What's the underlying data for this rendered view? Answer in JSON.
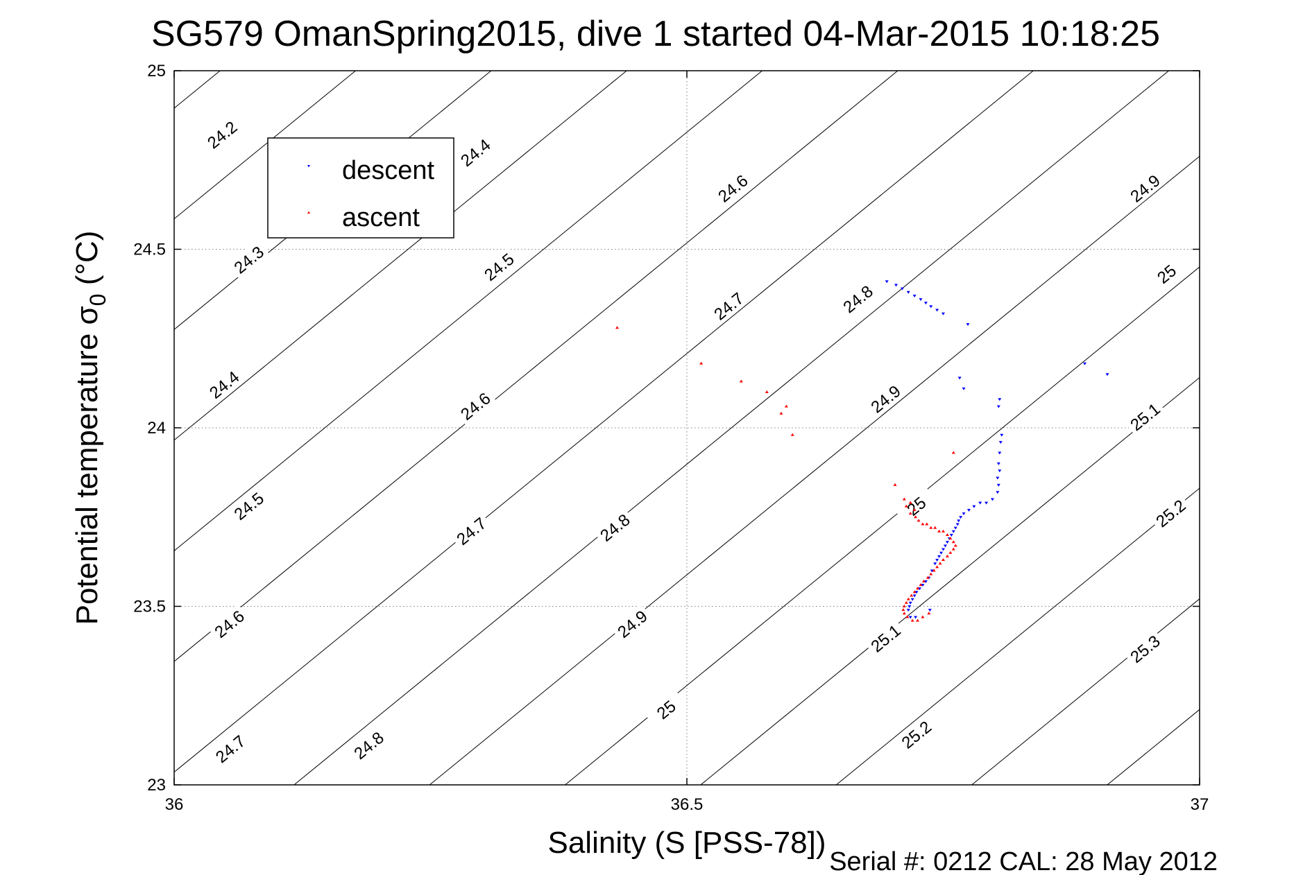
{
  "chart_data": {
    "type": "scatter",
    "title": "SG579 OmanSpring2015, dive 1 started 04-Mar-2015 10:18:25",
    "xlabel": "Salinity (S [PSS-78])",
    "ylabel_main": "Potential temperature σ",
    "ylabel_sub": "0",
    "ylabel_tail": " (°C)",
    "xlim": [
      36,
      37
    ],
    "ylim": [
      23,
      25
    ],
    "xticks": [
      36,
      36.5,
      37
    ],
    "xtick_labels": [
      "36",
      "36.5",
      "37"
    ],
    "yticks": [
      23,
      23.5,
      24,
      24.5,
      25
    ],
    "ytick_labels": [
      "23",
      "23.5",
      "24",
      "24.5",
      "25"
    ],
    "grid": "dotted",
    "legend": {
      "placement": "top-left",
      "entries": [
        {
          "name": "descent",
          "color": "#0000ff",
          "marker": "triangle-down"
        },
        {
          "name": "ascent",
          "color": "#ff0000",
          "marker": "triangle-up"
        }
      ]
    },
    "contours": {
      "note": "potential density sigma-0 isopycnals",
      "levels": [
        24.2,
        24.3,
        24.4,
        24.5,
        24.6,
        24.7,
        24.8,
        24.9,
        25,
        25.1,
        25.2,
        25.3
      ],
      "labels": [
        {
          "text": "24.2",
          "s": 36.047,
          "t": 24.82
        },
        {
          "text": "24.3",
          "s": 36.073,
          "t": 24.47
        },
        {
          "text": "24.4",
          "s": 36.049,
          "t": 24.12
        },
        {
          "text": "24.5",
          "s": 36.073,
          "t": 23.78
        },
        {
          "text": "24.6",
          "s": 36.054,
          "t": 23.45
        },
        {
          "text": "24.7",
          "s": 36.055,
          "t": 23.1
        },
        {
          "text": "24.4",
          "s": 36.294,
          "t": 24.77
        },
        {
          "text": "24.5",
          "s": 36.317,
          "t": 24.45
        },
        {
          "text": "24.6",
          "s": 36.294,
          "t": 24.06
        },
        {
          "text": "24.7",
          "s": 36.29,
          "t": 23.71
        },
        {
          "text": "24.8",
          "s": 36.19,
          "t": 23.11
        },
        {
          "text": "24.6",
          "s": 36.545,
          "t": 24.67
        },
        {
          "text": "24.7",
          "s": 36.541,
          "t": 24.34
        },
        {
          "text": "24.8",
          "s": 36.43,
          "t": 23.72
        },
        {
          "text": "24.9",
          "s": 36.447,
          "t": 23.45
        },
        {
          "text": "25",
          "s": 36.48,
          "t": 23.21
        },
        {
          "text": "24.8",
          "s": 36.667,
          "t": 24.36
        },
        {
          "text": "24.9",
          "s": 36.694,
          "t": 24.08
        },
        {
          "text": "25",
          "s": 36.724,
          "t": 23.78
        },
        {
          "text": "25.1",
          "s": 36.694,
          "t": 23.41
        },
        {
          "text": "25.2",
          "s": 36.724,
          "t": 23.14
        },
        {
          "text": "24.9",
          "s": 36.947,
          "t": 24.67
        },
        {
          "text": "25",
          "s": 36.968,
          "t": 24.43
        },
        {
          "text": "25.1",
          "s": 36.947,
          "t": 24.03
        },
        {
          "text": "25.2",
          "s": 36.972,
          "t": 23.76
        },
        {
          "text": "25.3",
          "s": 36.947,
          "t": 23.38
        }
      ]
    },
    "series": [
      {
        "name": "descent",
        "color": "#0000ff",
        "marker": "triangle-down",
        "points": [
          [
            36.695,
            24.41
          ],
          [
            36.704,
            24.4
          ],
          [
            36.71,
            24.39
          ],
          [
            36.716,
            24.38
          ],
          [
            36.722,
            24.37
          ],
          [
            36.728,
            24.36
          ],
          [
            36.733,
            24.35
          ],
          [
            36.738,
            24.34
          ],
          [
            36.744,
            24.33
          ],
          [
            36.75,
            24.32
          ],
          [
            36.774,
            24.29
          ],
          [
            36.888,
            24.18
          ],
          [
            36.91,
            24.15
          ],
          [
            36.766,
            24.14
          ],
          [
            36.77,
            24.11
          ],
          [
            36.805,
            24.08
          ],
          [
            36.804,
            24.06
          ],
          [
            36.807,
            23.98
          ],
          [
            36.806,
            23.96
          ],
          [
            36.805,
            23.93
          ],
          [
            36.804,
            23.9
          ],
          [
            36.805,
            23.88
          ],
          [
            36.803,
            23.86
          ],
          [
            36.804,
            23.84
          ],
          [
            36.803,
            23.82
          ],
          [
            36.798,
            23.8
          ],
          [
            36.792,
            23.79
          ],
          [
            36.786,
            23.79
          ],
          [
            36.78,
            23.78
          ],
          [
            36.775,
            23.77
          ],
          [
            36.77,
            23.76
          ],
          [
            36.767,
            23.75
          ],
          [
            36.765,
            23.74
          ],
          [
            36.764,
            23.73
          ],
          [
            36.762,
            23.72
          ],
          [
            36.76,
            23.71
          ],
          [
            36.758,
            23.7
          ],
          [
            36.756,
            23.69
          ],
          [
            36.754,
            23.68
          ],
          [
            36.752,
            23.67
          ],
          [
            36.75,
            23.66
          ],
          [
            36.748,
            23.65
          ],
          [
            36.746,
            23.64
          ],
          [
            36.744,
            23.63
          ],
          [
            36.742,
            23.62
          ],
          [
            36.739,
            23.6
          ],
          [
            36.736,
            23.58
          ],
          [
            36.733,
            23.57
          ],
          [
            36.73,
            23.56
          ],
          [
            36.727,
            23.55
          ],
          [
            36.724,
            23.54
          ],
          [
            36.722,
            23.53
          ],
          [
            36.72,
            23.52
          ],
          [
            36.718,
            23.51
          ],
          [
            36.717,
            23.5
          ],
          [
            36.716,
            23.49
          ],
          [
            36.737,
            23.49
          ],
          [
            36.718,
            23.47
          ],
          [
            36.723,
            23.47
          ]
        ]
      },
      {
        "name": "ascent",
        "color": "#ff0000",
        "marker": "triangle-up",
        "points": [
          [
            36.432,
            24.28
          ],
          [
            36.514,
            24.18
          ],
          [
            36.553,
            24.13
          ],
          [
            36.578,
            24.1
          ],
          [
            36.597,
            24.06
          ],
          [
            36.592,
            24.04
          ],
          [
            36.603,
            23.98
          ],
          [
            36.76,
            23.93
          ],
          [
            36.703,
            23.84
          ],
          [
            36.712,
            23.8
          ],
          [
            36.718,
            23.79
          ],
          [
            36.714,
            23.78
          ],
          [
            36.722,
            23.77
          ],
          [
            36.718,
            23.76
          ],
          [
            36.723,
            23.75
          ],
          [
            36.726,
            23.74
          ],
          [
            36.73,
            23.73
          ],
          [
            36.734,
            23.73
          ],
          [
            36.738,
            23.72
          ],
          [
            36.742,
            23.72
          ],
          [
            36.746,
            23.71
          ],
          [
            36.75,
            23.71
          ],
          [
            36.754,
            23.7
          ],
          [
            36.757,
            23.69
          ],
          [
            36.76,
            23.68
          ],
          [
            36.762,
            23.67
          ],
          [
            36.76,
            23.66
          ],
          [
            36.757,
            23.65
          ],
          [
            36.754,
            23.64
          ],
          [
            36.75,
            23.63
          ],
          [
            36.747,
            23.62
          ],
          [
            36.744,
            23.61
          ],
          [
            36.741,
            23.6
          ],
          [
            36.738,
            23.59
          ],
          [
            36.735,
            23.58
          ],
          [
            36.731,
            23.57
          ],
          [
            36.728,
            23.56
          ],
          [
            36.725,
            23.55
          ],
          [
            36.722,
            23.54
          ],
          [
            36.719,
            23.53
          ],
          [
            36.716,
            23.52
          ],
          [
            36.714,
            23.51
          ],
          [
            36.712,
            23.5
          ],
          [
            36.711,
            23.49
          ],
          [
            36.712,
            23.48
          ],
          [
            36.715,
            23.47
          ],
          [
            36.72,
            23.46
          ],
          [
            36.725,
            23.46
          ],
          [
            36.73,
            23.47
          ],
          [
            36.736,
            23.48
          ]
        ]
      }
    ]
  },
  "footer": {
    "serial": "Serial #: 0212  CAL: 28 May 2012"
  },
  "colors": {
    "descent": "#0000ff",
    "ascent": "#ff0000",
    "axis": "#000000",
    "grid": "#7f7f7f"
  }
}
